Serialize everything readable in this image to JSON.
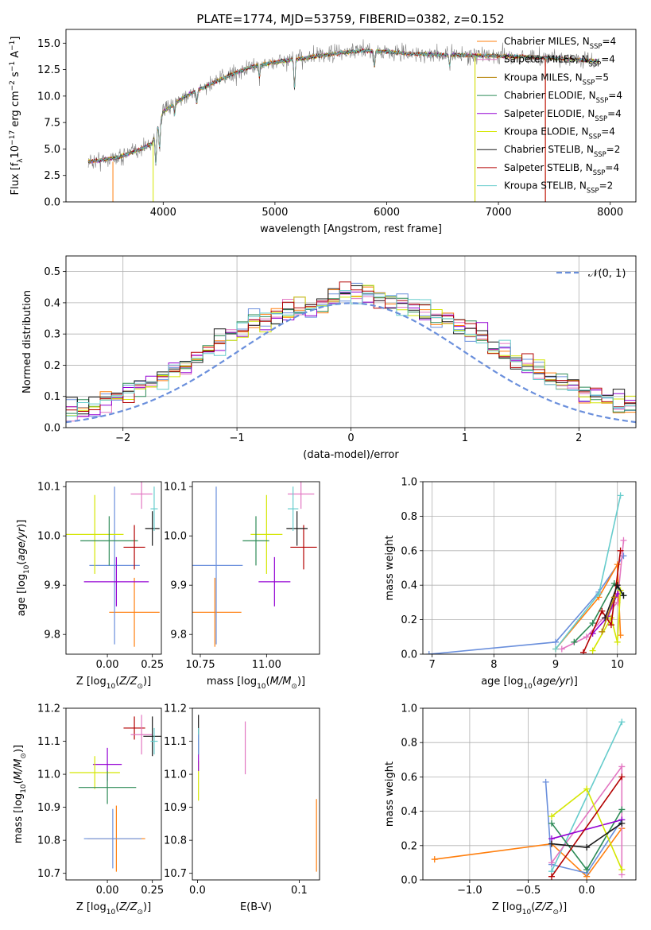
{
  "title": "PLATE=1774, MJD=53759, FIBERID=0382, z=0.152",
  "colors": {
    "c0": "#ff7f0e",
    "c1": "#e377c2",
    "c2": "#b8860b",
    "c3": "#2e8b57",
    "c4": "#9400d3",
    "c5": "#d4e600",
    "c6": "#1a1a1a",
    "c7": "#b30000",
    "c8": "#66cccc",
    "blue": "#6a8fdc"
  },
  "legend_spectrum": [
    "Chabrier MILES, N_SSP=4",
    "Salpeter MILES, N_SSP=4",
    "Kroupa MILES, N_SSP=5",
    "Chabrier ELODIE, N_SSP=4",
    "Salpeter ELODIE, N_SSP=4",
    "Kroupa ELODIE, N_SSP=4",
    "Chabrier STELIB, N_SSP=2",
    "Salpeter STELIB, N_SSP=4",
    "Kroupa STELIB, N_SSP=2"
  ],
  "chart_data": [
    {
      "type": "line",
      "title": "PLATE=1774, MJD=53759, FIBERID=0382, z=0.152",
      "xlabel": "wavelength [Angstrom, rest frame]",
      "ylabel": "Flux [f_λ 10^-17 erg cm^-2 s^-1 A^-1]",
      "xlim": [
        3130,
        8230
      ],
      "ylim": [
        0,
        16.3
      ],
      "xticks": [
        "4000",
        "5000",
        "6000",
        "7000",
        "8000"
      ],
      "yticks": [
        "0.0",
        "2.5",
        "5.0",
        "7.5",
        "10.0",
        "12.5",
        "15.0"
      ],
      "grid": false,
      "legend": "top-right",
      "continuum_points": [
        [
          3330,
          3.8
        ],
        [
          3400,
          3.9
        ],
        [
          3600,
          4.2
        ],
        [
          3800,
          5.0
        ],
        [
          3900,
          5.5
        ],
        [
          4000,
          8.5
        ],
        [
          4200,
          10.0
        ],
        [
          4400,
          11.0
        ],
        [
          4600,
          12.0
        ],
        [
          4800,
          12.8
        ],
        [
          5000,
          13.2
        ],
        [
          5200,
          13.5
        ],
        [
          5400,
          13.8
        ],
        [
          5600,
          14.1
        ],
        [
          5800,
          14.3
        ],
        [
          6000,
          14.2
        ],
        [
          6200,
          14.0
        ],
        [
          6500,
          13.9
        ],
        [
          7000,
          13.8
        ],
        [
          7500,
          13.6
        ],
        [
          7900,
          13.3
        ]
      ]
    },
    {
      "type": "histogram",
      "xlabel": "(data-model)/error",
      "ylabel": "Normed distribution",
      "xlim": [
        -2.5,
        2.5
      ],
      "ylim": [
        0,
        0.55
      ],
      "xticks": [
        "-2",
        "-1",
        "0",
        "1",
        "2"
      ],
      "yticks": [
        "0.0",
        "0.1",
        "0.2",
        "0.3",
        "0.4",
        "0.5"
      ],
      "grid": true,
      "legend": "top-right",
      "legend_label": "𝒩(0, 1)",
      "bin_width": 0.1,
      "representative_heights": [
        0.02,
        0.03,
        0.03,
        0.04,
        0.05,
        0.05,
        0.06,
        0.07,
        0.09,
        0.1,
        0.12,
        0.13,
        0.14,
        0.16,
        0.18,
        0.2,
        0.22,
        0.24,
        0.27,
        0.3,
        0.32,
        0.34,
        0.34,
        0.36,
        0.37,
        0.38,
        0.39,
        0.4,
        0.41,
        0.42,
        0.43,
        0.43,
        0.42,
        0.41,
        0.4,
        0.39,
        0.37,
        0.36,
        0.34,
        0.33,
        0.31,
        0.29,
        0.26,
        0.24,
        0.22,
        0.2,
        0.18,
        0.16,
        0.14,
        0.13,
        0.11,
        0.1,
        0.09,
        0.08,
        0.07,
        0.06,
        0.05,
        0.04,
        0.04,
        0.03
      ]
    },
    {
      "type": "errorbar",
      "xlabel": "Z [log10(Z/Z⊙)]",
      "ylabel": "age [log10(age/yr)]",
      "xlim": [
        -0.23,
        0.3
      ],
      "ylim": [
        9.76,
        10.11
      ],
      "xticks": [
        "0.00",
        "0.25"
      ],
      "yticks": [
        "9.8",
        "9.9",
        "10.0",
        "10.1"
      ],
      "points": [
        {
          "c": "c0",
          "x": 0.15,
          "xe": 0.14,
          "y": 9.845,
          "ye": 0.07
        },
        {
          "c": "blue",
          "x": 0.04,
          "xe": 0.14,
          "y": 9.94,
          "ye": 0.16
        },
        {
          "c": "c4",
          "x": 0.05,
          "xe": 0.18,
          "y": 9.907,
          "ye": 0.05
        },
        {
          "c": "c5",
          "x": -0.07,
          "xe": 0.16,
          "y": 10.003,
          "ye": 0.08
        },
        {
          "c": "c3",
          "x": 0.01,
          "xe": 0.16,
          "y": 9.99,
          "ye": 0.05
        },
        {
          "c": "c7",
          "x": 0.15,
          "xe": 0.06,
          "y": 9.977,
          "ye": 0.045
        },
        {
          "c": "c1",
          "x": 0.19,
          "xe": 0.06,
          "y": 10.085,
          "ye": 0.03
        },
        {
          "c": "c6",
          "x": 0.25,
          "xe": 0.04,
          "y": 10.015,
          "ye": 0.035
        },
        {
          "c": "c8",
          "x": 0.26,
          "xe": 0.02,
          "y": 10.055,
          "ye": 0.045
        }
      ]
    },
    {
      "type": "errorbar",
      "xlabel": "mass [log10(M/M⊙)]",
      "ylabel": "",
      "xlim": [
        10.72,
        11.2
      ],
      "ylim": [
        9.76,
        10.11
      ],
      "xticks": [
        "10.75",
        "11.00"
      ],
      "yticks": [
        "9.8",
        "9.9",
        "10.0",
        "10.1"
      ],
      "points": [
        {
          "c": "c0",
          "x": 10.805,
          "xe": 0.1,
          "y": 9.845,
          "ye": 0.07
        },
        {
          "c": "blue",
          "x": 10.81,
          "xe": 0.1,
          "y": 9.94,
          "ye": 0.16
        },
        {
          "c": "c4",
          "x": 11.03,
          "xe": 0.06,
          "y": 9.907,
          "ye": 0.05
        },
        {
          "c": "c5",
          "x": 11.0,
          "xe": 0.06,
          "y": 10.003,
          "ye": 0.08
        },
        {
          "c": "c3",
          "x": 10.96,
          "xe": 0.05,
          "y": 9.99,
          "ye": 0.05
        },
        {
          "c": "c7",
          "x": 11.14,
          "xe": 0.05,
          "y": 9.977,
          "ye": 0.045
        },
        {
          "c": "c1",
          "x": 11.13,
          "xe": 0.05,
          "y": 10.085,
          "ye": 0.03
        },
        {
          "c": "c6",
          "x": 11.115,
          "xe": 0.04,
          "y": 10.015,
          "ye": 0.035
        },
        {
          "c": "c8",
          "x": 11.1,
          "xe": 0.02,
          "y": 10.055,
          "ye": 0.045
        }
      ]
    },
    {
      "type": "line",
      "xlabel": "age  [log10(age/yr)]",
      "ylabel": "mass weight",
      "xlim": [
        6.85,
        10.3
      ],
      "ylim": [
        0,
        1.0
      ],
      "xticks": [
        "7",
        "8",
        "9",
        "10"
      ],
      "yticks": [
        "0.0",
        "0.2",
        "0.4",
        "0.6",
        "0.8",
        "1.0"
      ],
      "grid": true,
      "series": [
        {
          "c": "blue",
          "pts": [
            [
              6.95,
              0.0
            ],
            [
              9.0,
              0.07
            ],
            [
              9.7,
              0.36
            ],
            [
              10.1,
              0.57
            ]
          ]
        },
        {
          "c": "c0",
          "pts": [
            [
              9.0,
              0.03
            ],
            [
              9.7,
              0.33
            ],
            [
              10.0,
              0.52
            ],
            [
              10.05,
              0.11
            ]
          ]
        },
        {
          "c": "c8",
          "pts": [
            [
              9.0,
              0.03
            ],
            [
              9.7,
              0.35
            ],
            [
              10.05,
              0.92
            ]
          ]
        },
        {
          "c": "c1",
          "pts": [
            [
              9.1,
              0.03
            ],
            [
              9.5,
              0.1
            ],
            [
              10.0,
              0.3
            ],
            [
              10.1,
              0.66
            ]
          ]
        },
        {
          "c": "c3",
          "pts": [
            [
              9.3,
              0.07
            ],
            [
              9.6,
              0.18
            ],
            [
              9.95,
              0.41
            ],
            [
              10.1,
              0.34
            ]
          ]
        },
        {
          "c": "c4",
          "pts": [
            [
              9.6,
              0.12
            ],
            [
              9.85,
              0.22
            ],
            [
              10.0,
              0.35
            ]
          ]
        },
        {
          "c": "c5",
          "pts": [
            [
              9.6,
              0.02
            ],
            [
              9.9,
              0.21
            ],
            [
              10.0,
              0.07
            ],
            [
              10.05,
              0.37
            ]
          ]
        },
        {
          "c": "c7",
          "pts": [
            [
              9.45,
              0.01
            ],
            [
              9.75,
              0.25
            ],
            [
              9.9,
              0.17
            ],
            [
              10.05,
              0.6
            ]
          ]
        },
        {
          "c": "c6",
          "pts": [
            [
              9.8,
              0.21
            ],
            [
              10.0,
              0.4
            ],
            [
              10.1,
              0.34
            ]
          ]
        },
        {
          "c": "c2",
          "pts": [
            [
              9.75,
              0.13
            ],
            [
              9.95,
              0.33
            ]
          ]
        }
      ]
    },
    {
      "type": "errorbar",
      "xlabel": "Z [log10(Z/Z⊙)]",
      "ylabel": "mass [log10(M/M⊙)]",
      "xlim": [
        -0.23,
        0.3
      ],
      "ylim": [
        10.68,
        11.2
      ],
      "xticks": [
        "0.00",
        "0.25"
      ],
      "yticks": [
        "10.7",
        "10.8",
        "10.9",
        "11.0",
        "11.1",
        "11.2"
      ],
      "points": [
        {
          "c": "c0",
          "x": 0.05,
          "xe": 0.16,
          "y": 10.805,
          "ye": 0.1
        },
        {
          "c": "blue",
          "x": 0.03,
          "xe": 0.16,
          "y": 10.805,
          "ye": 0.09
        },
        {
          "c": "c4",
          "x": 0.0,
          "xe": 0.08,
          "y": 11.03,
          "ye": 0.05
        },
        {
          "c": "c5",
          "x": -0.07,
          "xe": 0.14,
          "y": 11.005,
          "ye": 0.05
        },
        {
          "c": "c3",
          "x": 0.0,
          "xe": 0.16,
          "y": 10.96,
          "ye": 0.05
        },
        {
          "c": "c7",
          "x": 0.15,
          "xe": 0.06,
          "y": 11.14,
          "ye": 0.035
        },
        {
          "c": "c1",
          "x": 0.19,
          "xe": 0.06,
          "y": 11.12,
          "ye": 0.06
        },
        {
          "c": "c6",
          "x": 0.25,
          "xe": 0.05,
          "y": 11.115,
          "ye": 0.06
        },
        {
          "c": "c8",
          "x": 0.26,
          "xe": 0.02,
          "y": 11.1,
          "ye": 0.04
        }
      ]
    },
    {
      "type": "errorbar",
      "xlabel": "E(B-V)",
      "ylabel": "",
      "xlim": [
        -0.005,
        0.12
      ],
      "ylim": [
        10.68,
        11.2
      ],
      "xticks": [
        "0.0",
        "0.1"
      ],
      "yticks": [
        "10.7",
        "10.8",
        "10.9",
        "11.0",
        "11.1",
        "11.2"
      ],
      "points": [
        {
          "c": "c0",
          "x": 0.117,
          "xe": 0,
          "y": 10.815,
          "ye": 0.11
        },
        {
          "c": "c1",
          "x": 0.047,
          "xe": 0,
          "y": 11.08,
          "ye": 0.08
        },
        {
          "c": "c5",
          "x": 0.001,
          "xe": 0,
          "y": 10.98,
          "ye": 0.06
        },
        {
          "c": "c4",
          "x": 0.001,
          "xe": 0,
          "y": 11.05,
          "ye": 0.04
        },
        {
          "c": "c6",
          "x": 0.001,
          "xe": 0,
          "y": 11.12,
          "ye": 0.06
        },
        {
          "c": "c8",
          "x": 0.001,
          "xe": 0,
          "y": 11.1,
          "ye": 0.04
        },
        {
          "c": "blue",
          "x": 0.001,
          "xe": 0,
          "y": 11.09,
          "ye": 0.03
        }
      ]
    },
    {
      "type": "line",
      "xlabel": "Z [log10(Z/Z⊙)]",
      "ylabel": "mass weight",
      "xlim": [
        -1.4,
        0.42
      ],
      "ylim": [
        0,
        1.0
      ],
      "xticks": [
        "-1.0",
        "-0.5",
        "0.0"
      ],
      "yticks": [
        "0.0",
        "0.2",
        "0.4",
        "0.6",
        "0.8",
        "1.0"
      ],
      "grid": true,
      "series": [
        {
          "c": "c0",
          "pts": [
            [
              -1.3,
              0.12
            ],
            [
              -0.3,
              0.21
            ],
            [
              0.0,
              0.02
            ],
            [
              0.3,
              0.3
            ]
          ]
        },
        {
          "c": "blue",
          "pts": [
            [
              -0.35,
              0.57
            ],
            [
              -0.3,
              0.09
            ],
            [
              0.0,
              0.04
            ],
            [
              0.3,
              0.35
            ]
          ]
        },
        {
          "c": "c8",
          "pts": [
            [
              -0.3,
              0.05
            ],
            [
              0.3,
              0.92
            ]
          ]
        },
        {
          "c": "c1",
          "pts": [
            [
              -0.3,
              0.1
            ],
            [
              0.3,
              0.66
            ],
            [
              0.3,
              0.03
            ]
          ]
        },
        {
          "c": "c3",
          "pts": [
            [
              -0.3,
              0.33
            ],
            [
              0.0,
              0.06
            ],
            [
              0.3,
              0.41
            ]
          ]
        },
        {
          "c": "c4",
          "pts": [
            [
              -0.3,
              0.24
            ],
            [
              0.3,
              0.35
            ]
          ]
        },
        {
          "c": "c5",
          "pts": [
            [
              -0.3,
              0.37
            ],
            [
              0.0,
              0.53
            ],
            [
              0.3,
              0.06
            ]
          ]
        },
        {
          "c": "c7",
          "pts": [
            [
              -0.3,
              0.02
            ],
            [
              0.3,
              0.6
            ]
          ]
        },
        {
          "c": "c6",
          "pts": [
            [
              -0.3,
              0.21
            ],
            [
              0.0,
              0.19
            ],
            [
              0.3,
              0.33
            ]
          ]
        }
      ]
    }
  ]
}
